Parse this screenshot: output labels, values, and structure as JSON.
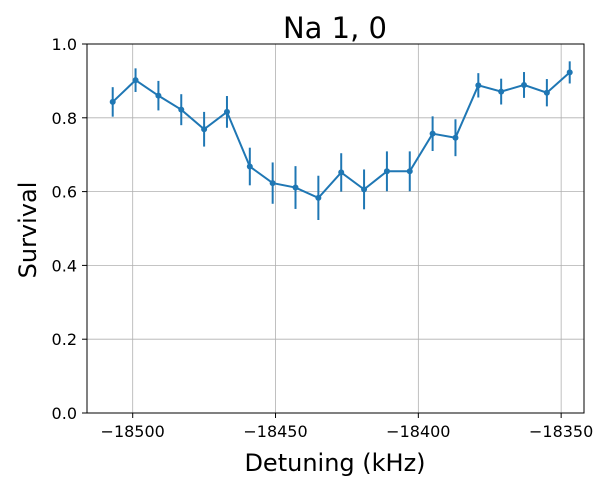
{
  "chart_data": {
    "type": "line",
    "title": "Na 1, 0",
    "xlabel": "Detuning (kHz)",
    "ylabel": "Survival",
    "xlim": [
      -18516,
      -18342
    ],
    "ylim": [
      0.0,
      1.0
    ],
    "grid": true,
    "color": "#1f77b4",
    "xticks": [
      -18500,
      -18450,
      -18400,
      -18350
    ],
    "xtick_labels": [
      "−18500",
      "−18450",
      "−18400",
      "−18350"
    ],
    "yticks": [
      0.0,
      0.2,
      0.4,
      0.6,
      0.8,
      1.0
    ],
    "ytick_labels": [
      "0.0",
      "0.2",
      "0.4",
      "0.6",
      "0.8",
      "1.0"
    ],
    "series": [
      {
        "x": [
          -18507,
          -18499,
          -18491,
          -18483,
          -18475,
          -18467,
          -18459,
          -18451,
          -18443,
          -18435,
          -18427,
          -18419,
          -18411,
          -18403,
          -18395,
          -18387,
          -18379,
          -18371,
          -18363,
          -18355,
          -18347
        ],
        "y": [
          0.843,
          0.902,
          0.86,
          0.822,
          0.769,
          0.816,
          0.668,
          0.623,
          0.611,
          0.583,
          0.652,
          0.606,
          0.655,
          0.655,
          0.757,
          0.746,
          0.888,
          0.871,
          0.889,
          0.868,
          0.923
        ],
        "yerr": [
          0.04,
          0.032,
          0.04,
          0.042,
          0.047,
          0.043,
          0.051,
          0.056,
          0.058,
          0.06,
          0.052,
          0.054,
          0.054,
          0.054,
          0.047,
          0.05,
          0.033,
          0.035,
          0.035,
          0.037,
          0.03
        ]
      }
    ]
  }
}
